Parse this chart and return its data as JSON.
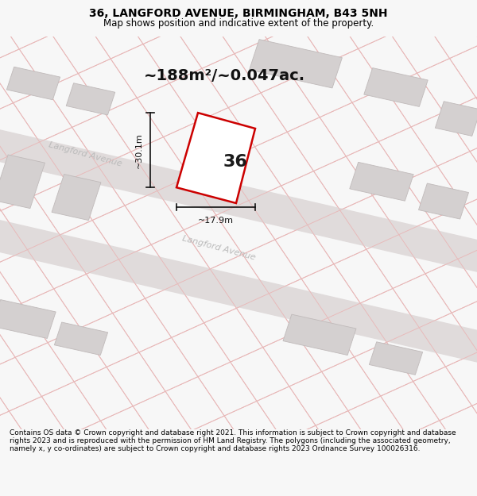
{
  "title": "36, LANGFORD AVENUE, BIRMINGHAM, B43 5NH",
  "subtitle": "Map shows position and indicative extent of the property.",
  "area_text": "~188m²/~0.047ac.",
  "width_label": "~17.9m",
  "height_label": "~30.1m",
  "number_label": "36",
  "footer_text": "Contains OS data © Crown copyright and database right 2021. This information is subject to Crown copyright and database rights 2023 and is reproduced with the permission of HM Land Registry. The polygons (including the associated geometry, namely x, y co-ordinates) are subject to Crown copyright and database rights 2023 Ordnance Survey 100026316.",
  "bg_color": "#f7f7f7",
  "map_bg_color": "#f2f0f0",
  "plot_line_color": "#cc0000",
  "building_color": "#d4d0d0",
  "faint_line_color": "#e8b8b8",
  "road_fill_color": "#e0dbdb",
  "road_label_color": "#bbbbbb",
  "dim_line_color": "#111111",
  "title_fontsize": 10,
  "subtitle_fontsize": 8.5,
  "area_fontsize": 14,
  "number_fontsize": 16,
  "road_label_fontsize": 8,
  "footer_fontsize": 6.5,
  "fig_width": 6.0,
  "fig_height": 6.25,
  "dpi": 100
}
